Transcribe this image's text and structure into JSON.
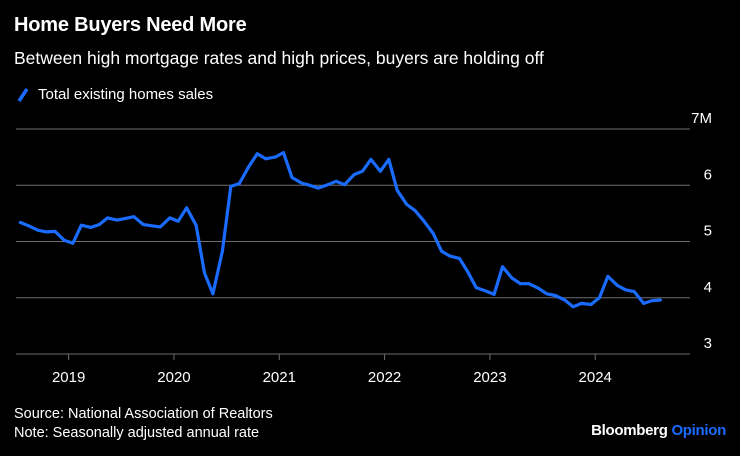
{
  "header": {
    "title": "Home Buyers Need More",
    "subtitle": "Between high mortgage rates and high prices, buyers are holding off"
  },
  "legend": {
    "label": "Total existing homes sales"
  },
  "colors": {
    "line": "#1a6bff",
    "background": "#000000",
    "grid": "#6e6e6e",
    "text": "#ffffff"
  },
  "chart_data": {
    "type": "line",
    "title": "Home Buyers Need More",
    "xlabel": "",
    "ylabel": "",
    "ylim": [
      3,
      7
    ],
    "y_ticks": [
      3,
      4,
      5,
      6,
      7
    ],
    "y_tick_labels": [
      "3",
      "4",
      "5",
      "6",
      "7M"
    ],
    "x_ticks": [
      2019,
      2020,
      2021,
      2022,
      2023,
      2024
    ],
    "x_tick_labels": [
      "2019",
      "2020",
      "2021",
      "2022",
      "2023",
      "2024"
    ],
    "xlim": [
      2018.5,
      2024.9
    ],
    "series": [
      {
        "name": "Total existing homes sales",
        "x": [
          2018.54,
          2018.62,
          2018.71,
          2018.79,
          2018.87,
          2018.96,
          2019.04,
          2019.12,
          2019.21,
          2019.29,
          2019.37,
          2019.46,
          2019.54,
          2019.62,
          2019.71,
          2019.79,
          2019.87,
          2019.96,
          2020.04,
          2020.12,
          2020.21,
          2020.29,
          2020.37,
          2020.46,
          2020.54,
          2020.62,
          2020.71,
          2020.79,
          2020.87,
          2020.96,
          2021.04,
          2021.12,
          2021.21,
          2021.29,
          2021.37,
          2021.46,
          2021.54,
          2021.62,
          2021.71,
          2021.79,
          2021.87,
          2021.96,
          2022.04,
          2022.12,
          2022.21,
          2022.29,
          2022.37,
          2022.46,
          2022.54,
          2022.62,
          2022.71,
          2022.79,
          2022.87,
          2022.96,
          2023.04,
          2023.12,
          2023.21,
          2023.29,
          2023.37,
          2023.46,
          2023.54,
          2023.62,
          2023.71,
          2023.79,
          2023.87,
          2023.96,
          2024.04,
          2024.12,
          2024.21,
          2024.29,
          2024.37,
          2024.46,
          2024.54,
          2024.62
        ],
        "values": [
          5.34,
          5.28,
          5.2,
          5.17,
          5.18,
          5.02,
          4.97,
          5.29,
          5.25,
          5.3,
          5.42,
          5.38,
          5.41,
          5.44,
          5.3,
          5.28,
          5.26,
          5.42,
          5.36,
          5.6,
          5.29,
          4.44,
          4.07,
          4.83,
          5.98,
          6.03,
          6.33,
          6.56,
          6.47,
          6.5,
          6.58,
          6.14,
          6.04,
          6.0,
          5.95,
          6.01,
          6.07,
          6.01,
          6.19,
          6.25,
          6.46,
          6.25,
          6.46,
          5.91,
          5.66,
          5.55,
          5.37,
          5.15,
          4.83,
          4.74,
          4.7,
          4.46,
          4.18,
          4.12,
          4.06,
          4.55,
          4.35,
          4.25,
          4.25,
          4.17,
          4.07,
          4.04,
          3.96,
          3.84,
          3.9,
          3.88,
          4.0,
          4.38,
          4.22,
          4.14,
          4.11,
          3.9,
          3.95,
          3.96
        ]
      }
    ]
  },
  "footer": {
    "source": "Source: National Association of Realtors",
    "note": "Note: Seasonally adjusted annual rate"
  },
  "brand": {
    "name": "Bloomberg",
    "suffix": "Opinion"
  }
}
